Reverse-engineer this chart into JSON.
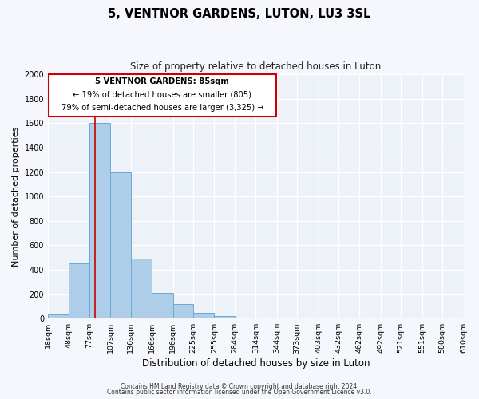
{
  "title": "5, VENTNOR GARDENS, LUTON, LU3 3SL",
  "subtitle": "Size of property relative to detached houses in Luton",
  "xlabel": "Distribution of detached houses by size in Luton",
  "ylabel": "Number of detached properties",
  "bar_color": "#aecde8",
  "bar_edge_color": "#6aaad4",
  "background_color": "#edf2f9",
  "grid_color": "#ffffff",
  "annotation_box_color": "#cc0000",
  "annotation_line_color": "#cc0000",
  "property_line_x": 85,
  "annotation_text_line1": "5 VENTNOR GARDENS: 85sqm",
  "annotation_text_line2": "← 19% of detached houses are smaller (805)",
  "annotation_text_line3": "79% of semi-detached houses are larger (3,325) →",
  "bin_edges": [
    18,
    48,
    77,
    107,
    136,
    166,
    196,
    225,
    255,
    284,
    314,
    344,
    373,
    403,
    432,
    462,
    492,
    521,
    551,
    580,
    610
  ],
  "bin_labels": [
    "18sqm",
    "48sqm",
    "77sqm",
    "107sqm",
    "136sqm",
    "166sqm",
    "196sqm",
    "225sqm",
    "255sqm",
    "284sqm",
    "314sqm",
    "344sqm",
    "373sqm",
    "403sqm",
    "432sqm",
    "462sqm",
    "492sqm",
    "521sqm",
    "551sqm",
    "580sqm",
    "610sqm"
  ],
  "bar_heights": [
    35,
    455,
    1600,
    1200,
    490,
    210,
    120,
    45,
    18,
    10,
    5,
    0,
    0,
    0,
    0,
    0,
    0,
    0,
    0,
    0
  ],
  "ylim": [
    0,
    2000
  ],
  "yticks": [
    0,
    200,
    400,
    600,
    800,
    1000,
    1200,
    1400,
    1600,
    1800,
    2000
  ],
  "footer_line1": "Contains HM Land Registry data © Crown copyright and database right 2024.",
  "footer_line2": "Contains public sector information licensed under the Open Government Licence v3.0.",
  "fig_width": 6.0,
  "fig_height": 5.0,
  "fig_dpi": 100
}
